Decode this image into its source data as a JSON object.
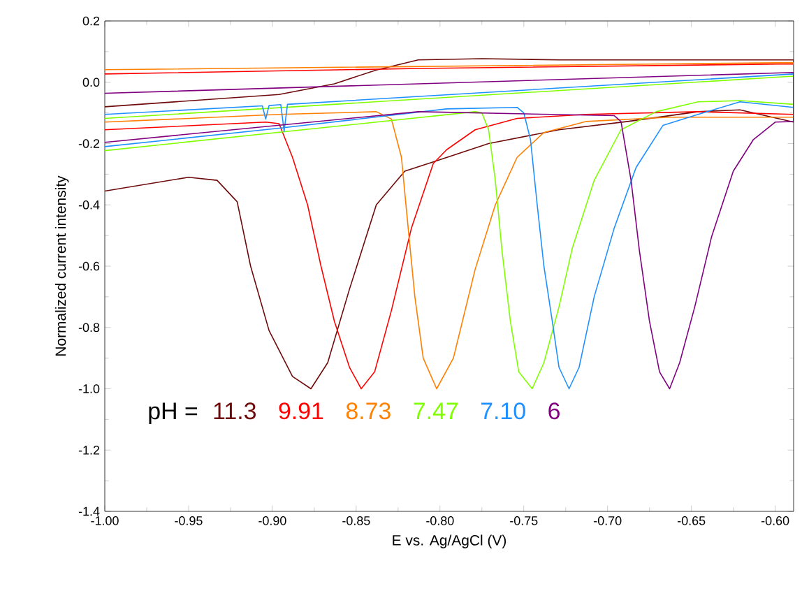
{
  "chart_data": {
    "type": "line",
    "xlabel": "E vs. Ag/AgCl (V)",
    "ylabel": "Normalized current intensity",
    "annotations": [
      "pH ="
    ],
    "xlim": [
      -1.0,
      -0.589
    ],
    "ylim": [
      -1.4,
      0.2
    ],
    "xticks": [
      {
        "value": -1.0,
        "label": "-1.00"
      },
      -0.95,
      {
        "value": -0.9,
        "label": "-0.90"
      },
      -0.85,
      {
        "value": -0.8,
        "label": "-0.80"
      },
      -0.75,
      {
        "value": -0.7,
        "label": "-0.70"
      },
      -0.65,
      {
        "value": -0.6,
        "label": "-0.60"
      }
    ],
    "yticks": [
      -1.4,
      -1.2,
      {
        "value": -1.0,
        "label": "-1.0"
      },
      -0.8,
      -0.6,
      -0.4,
      -0.2,
      {
        "value": 0.0,
        "label": "0.0"
      },
      0.2
    ],
    "grid": false,
    "marker": "none",
    "line_style": "solid",
    "series": [
      {
        "name": "11.3",
        "color": "#6e0a0a",
        "x": [
          -1.0,
          -0.95,
          -0.933,
          -0.921,
          -0.913,
          -0.902,
          -0.888,
          -0.877,
          -0.867,
          -0.854,
          -0.838,
          -0.821,
          -0.804,
          -0.771,
          -0.729,
          -0.688,
          -0.646,
          -0.621,
          -0.589,
          -0.589,
          -0.729,
          -0.775,
          -0.813,
          -0.838,
          -0.863,
          -0.896,
          -1.0
        ],
        "values": [
          -0.355,
          -0.31,
          -0.32,
          -0.39,
          -0.6,
          -0.81,
          -0.96,
          -1.0,
          -0.915,
          -0.675,
          -0.4,
          -0.29,
          -0.26,
          -0.2,
          -0.155,
          -0.128,
          -0.096,
          -0.09,
          -0.13,
          0.073,
          0.073,
          0.077,
          0.073,
          0.04,
          -0.005,
          -0.04,
          -0.08
        ]
      },
      {
        "name": "9.91",
        "color": "#ff0000",
        "x": [
          -1.0,
          -0.904,
          -0.896,
          -0.888,
          -0.879,
          -0.871,
          -0.863,
          -0.854,
          -0.847,
          -0.839,
          -0.829,
          -0.817,
          -0.804,
          -0.796,
          -0.779,
          -0.754,
          -0.713,
          -0.646,
          -0.589,
          -0.589,
          -0.813,
          -1.0
        ],
        "values": [
          -0.155,
          -0.13,
          -0.135,
          -0.245,
          -0.4,
          -0.6,
          -0.78,
          -0.93,
          -1.0,
          -0.945,
          -0.745,
          -0.475,
          -0.265,
          -0.22,
          -0.155,
          -0.118,
          -0.105,
          -0.096,
          -0.105,
          0.06,
          0.045,
          0.027
        ]
      },
      {
        "name": "8.73",
        "color": "#ff7f00",
        "x": [
          -1.0,
          -0.896,
          -0.838,
          -0.829,
          -0.823,
          -0.819,
          -0.815,
          -0.81,
          -0.802,
          -0.792,
          -0.779,
          -0.767,
          -0.754,
          -0.738,
          -0.713,
          -0.663,
          -0.589,
          -0.589,
          -1.0
        ],
        "values": [
          -0.13,
          -0.105,
          -0.096,
          -0.12,
          -0.245,
          -0.475,
          -0.7,
          -0.9,
          -1.0,
          -0.9,
          -0.61,
          -0.4,
          -0.245,
          -0.164,
          -0.128,
          -0.114,
          -0.114,
          0.064,
          0.041
        ]
      },
      {
        "name": "7.47",
        "color": "#80ff00",
        "x": [
          -1.0,
          -0.779,
          -0.775,
          -0.771,
          -0.767,
          -0.763,
          -0.758,
          -0.753,
          -0.745,
          -0.738,
          -0.729,
          -0.721,
          -0.708,
          -0.692,
          -0.671,
          -0.646,
          -0.621,
          -0.589,
          -0.589,
          -1.0
        ],
        "values": [
          -0.223,
          -0.096,
          -0.1,
          -0.155,
          -0.32,
          -0.55,
          -0.78,
          -0.945,
          -1.0,
          -0.915,
          -0.733,
          -0.54,
          -0.32,
          -0.155,
          -0.096,
          -0.064,
          -0.06,
          -0.072,
          0.02,
          -0.118
        ]
      },
      {
        "name": "7.10",
        "color": "#1e90ff",
        "x": [
          -1.0,
          -0.896,
          -0.796,
          -0.754,
          -0.75,
          -0.746,
          -0.742,
          -0.738,
          -0.733,
          -0.729,
          -0.723,
          -0.717,
          -0.708,
          -0.696,
          -0.683,
          -0.667,
          -0.646,
          -0.621,
          -0.589,
          -0.589,
          -0.891,
          -0.893,
          -0.895,
          -0.902,
          -0.904,
          -0.906,
          -1.0
        ],
        "values": [
          -0.21,
          -0.15,
          -0.087,
          -0.082,
          -0.1,
          -0.187,
          -0.4,
          -0.6,
          -0.78,
          -0.93,
          -1.0,
          -0.93,
          -0.7,
          -0.475,
          -0.278,
          -0.141,
          -0.105,
          -0.064,
          -0.082,
          0.027,
          -0.072,
          -0.16,
          -0.073,
          -0.076,
          -0.12,
          -0.077,
          -0.105
        ]
      },
      {
        "name": "6",
        "color": "#800080",
        "x": [
          -1.0,
          -0.813,
          -0.696,
          -0.692,
          -0.686,
          -0.681,
          -0.675,
          -0.669,
          -0.663,
          -0.657,
          -0.648,
          -0.638,
          -0.625,
          -0.613,
          -0.6,
          -0.589,
          -0.589,
          -1.0
        ],
        "values": [
          -0.196,
          -0.096,
          -0.109,
          -0.128,
          -0.32,
          -0.55,
          -0.78,
          -0.945,
          -1.0,
          -0.915,
          -0.733,
          -0.505,
          -0.29,
          -0.187,
          -0.13,
          -0.128,
          0.032,
          -0.036
        ]
      }
    ]
  }
}
